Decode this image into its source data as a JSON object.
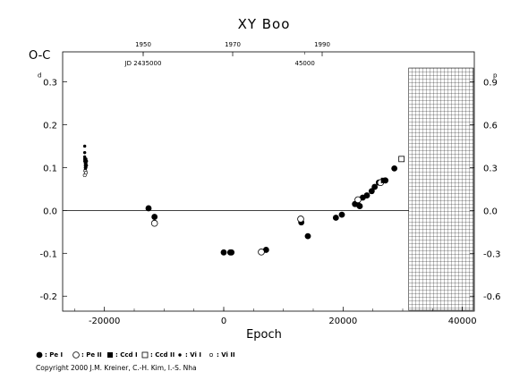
{
  "chart_data": {
    "type": "scatter",
    "title": "XY Boo",
    "xlabel": "Epoch",
    "ylabel": "O-C",
    "xlim": [
      -27000,
      42000
    ],
    "ylim": [
      -0.235,
      0.37
    ],
    "grid": false,
    "x_ticks": [
      -20000,
      0,
      20000,
      40000
    ],
    "x_tick_labels": [
      "-20000",
      "0",
      "20000",
      "40000"
    ],
    "y_ticks": [
      -0.2,
      -0.1,
      0.0,
      0.1,
      0.2,
      0.3
    ],
    "y_tick_labels": [
      "-0.2",
      "-0.1",
      "0.0",
      "0.1",
      "0.2",
      "0.3"
    ],
    "y_tick_superscript": "d",
    "right_axis": {
      "ticks": [
        -0.6,
        -0.3,
        0.0,
        0.3,
        0.6,
        0.9
      ],
      "tick_labels": [
        "-0.6",
        "-0.3",
        "0.0",
        "0.3",
        "0.6",
        "0.9"
      ],
      "superscript": "p",
      "ratio": 3.0
    },
    "top_axis": {
      "year_ticks": [
        1950,
        1970,
        1990
      ],
      "year_labels": [
        "1950",
        "1970",
        "1990"
      ],
      "year_epoch": [
        -13500,
        1500,
        16500
      ],
      "jd_labels": [
        "JD 2435000",
        "45000"
      ],
      "jd_epoch": [
        -13500,
        13600
      ]
    },
    "future_region": {
      "x_start": 31000,
      "x_end": 42000,
      "hatched": true
    },
    "zero_line": 0.0,
    "series": [
      {
        "name": ": Pe I",
        "marker": "filled-circle",
        "x": [
          -12600,
          -11600,
          0,
          1100,
          1300,
          7100,
          13000,
          14100,
          18800,
          19800,
          22000,
          22400,
          22800,
          23300,
          24000,
          24800,
          25300,
          26000,
          27100,
          28600
        ],
        "y": [
          0.005,
          -0.015,
          -0.098,
          -0.098,
          -0.098,
          -0.092,
          -0.028,
          -0.06,
          -0.017,
          -0.01,
          0.015,
          0.015,
          0.01,
          0.03,
          0.035,
          0.045,
          0.055,
          0.065,
          0.07,
          0.098
        ]
      },
      {
        "name": ": Pe II",
        "marker": "open-circle",
        "x": [
          -11600,
          6300,
          12900,
          22500,
          26300
        ],
        "y": [
          -0.03,
          -0.097,
          -0.02,
          0.025,
          0.065
        ]
      },
      {
        "name": ": Ccd I",
        "marker": "filled-square",
        "x": [
          26800
        ],
        "y": [
          0.07
        ]
      },
      {
        "name": ": Ccd II",
        "marker": "open-square",
        "x": [
          29800
        ],
        "y": [
          0.12
        ]
      },
      {
        "name": ": Vi I",
        "marker": "small-filled-circle",
        "x": [
          -23300,
          -23300,
          -23300,
          -23300,
          -23300,
          -23200,
          -23200,
          -23200,
          -23200,
          -23100,
          -23100,
          -23100,
          -23000,
          -23000
        ],
        "y": [
          0.15,
          0.135,
          0.125,
          0.12,
          0.115,
          0.11,
          0.105,
          0.1,
          0.095,
          0.12,
          0.11,
          0.1,
          0.115,
          0.105
        ]
      },
      {
        "name": ": Vi II",
        "marker": "small-open-circle",
        "x": [
          -23300,
          -23200,
          -23100
        ],
        "y": [
          0.082,
          0.092,
          0.088
        ]
      }
    ]
  },
  "copyright": "Copyright 2000 J.M. Kreiner, C.-H. Kim, I.-S. Nha"
}
